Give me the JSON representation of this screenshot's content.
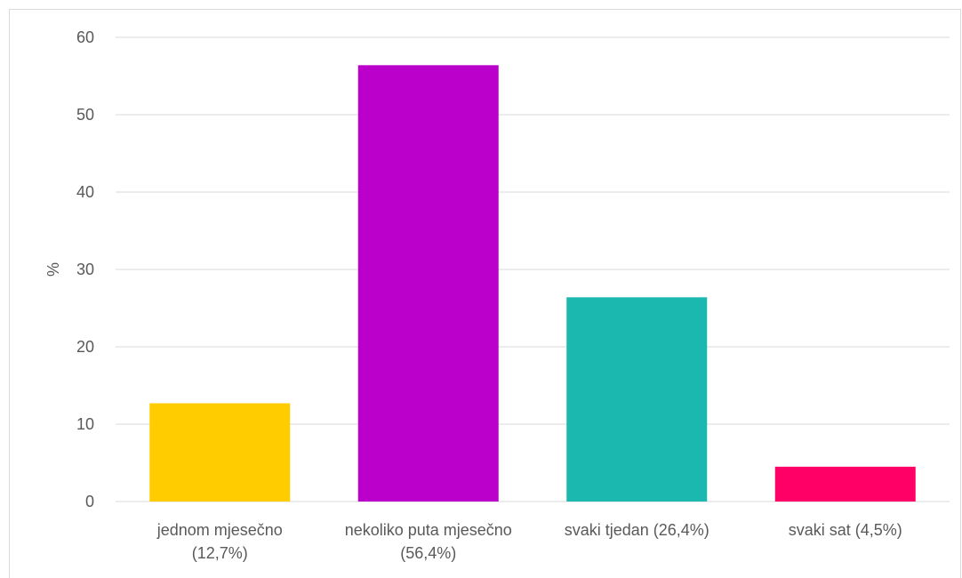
{
  "chart_data": {
    "type": "bar",
    "categories": [
      [
        "jednom mjesečno",
        "(12,7%)"
      ],
      [
        "nekoliko puta mjesečno",
        "(56,4%)"
      ],
      [
        "svaki tjedan (26,4%)"
      ],
      [
        "svaki sat (4,5%)"
      ]
    ],
    "values": [
      12.7,
      56.4,
      26.4,
      4.5
    ],
    "colors": [
      "#FFCC00",
      "#BB00CC",
      "#1BB8B0",
      "#FF0066"
    ],
    "ylabel": "%",
    "ylim": [
      0,
      60
    ],
    "yticks": [
      "0",
      "10",
      "20",
      "30",
      "40",
      "50",
      "60"
    ],
    "grid": true,
    "gridColor": "#d9d9d9"
  }
}
